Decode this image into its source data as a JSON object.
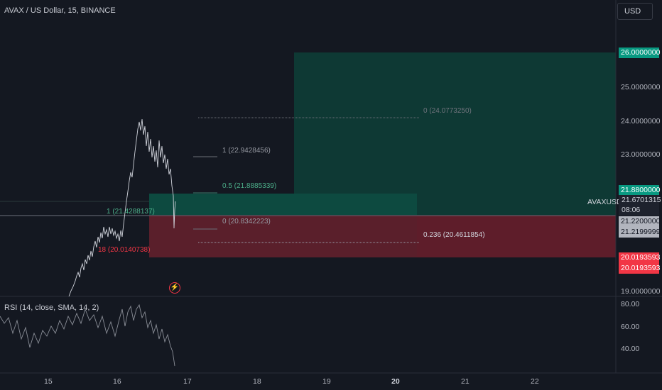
{
  "header": {
    "symbol_title": "AVAX / US Dollar, 15, BINANCE",
    "currency_button": "USD"
  },
  "price_axis": {
    "labels": [
      "26.0000000",
      "25.0000000",
      "24.0000000",
      "23.0000000",
      "21.8800000",
      "19.0000000"
    ]
  },
  "price_tags": {
    "target": {
      "text": "26.0000000",
      "color": "#089981"
    },
    "entry_upper": {
      "text": "21.8800000",
      "color": "#089981"
    },
    "symbol": "AVAXUSD",
    "current_price": "21.6701315",
    "countdown": "08:06",
    "level_a": {
      "text": "21.2200000",
      "color": "#b2b5be"
    },
    "level_b": {
      "text": "21.2199999",
      "color": "#b2b5be"
    },
    "stop_a": {
      "text": "20.0193593",
      "color": "#f23645"
    },
    "stop_b": {
      "text": "20.0193593",
      "color": "#f23645"
    }
  },
  "fib_labels": {
    "fib1_level1": "1 (22.9428456)",
    "fib1_level05": "0.5 (21.8885339)",
    "fib1_level0": "0 (20.8342223)",
    "fib2_level0": "0 (24.0773250)",
    "fib2_level0236": "0.236 (20.4611854)",
    "fib3_level1": "1 (21.4288137)",
    "fib3_level18": "18 (20.0140738)"
  },
  "rsi": {
    "title": "RSI (14, close, SMA, 14, 2)",
    "labels": [
      "80.00",
      "60.00",
      "40.00"
    ]
  },
  "time_axis": {
    "labels": [
      "15",
      "16",
      "17",
      "18",
      "19",
      "20",
      "21",
      "22"
    ]
  },
  "alert_icon": "lightning-icon",
  "colors": {
    "background": "#141821",
    "green": "#089981",
    "red": "#f23645"
  }
}
